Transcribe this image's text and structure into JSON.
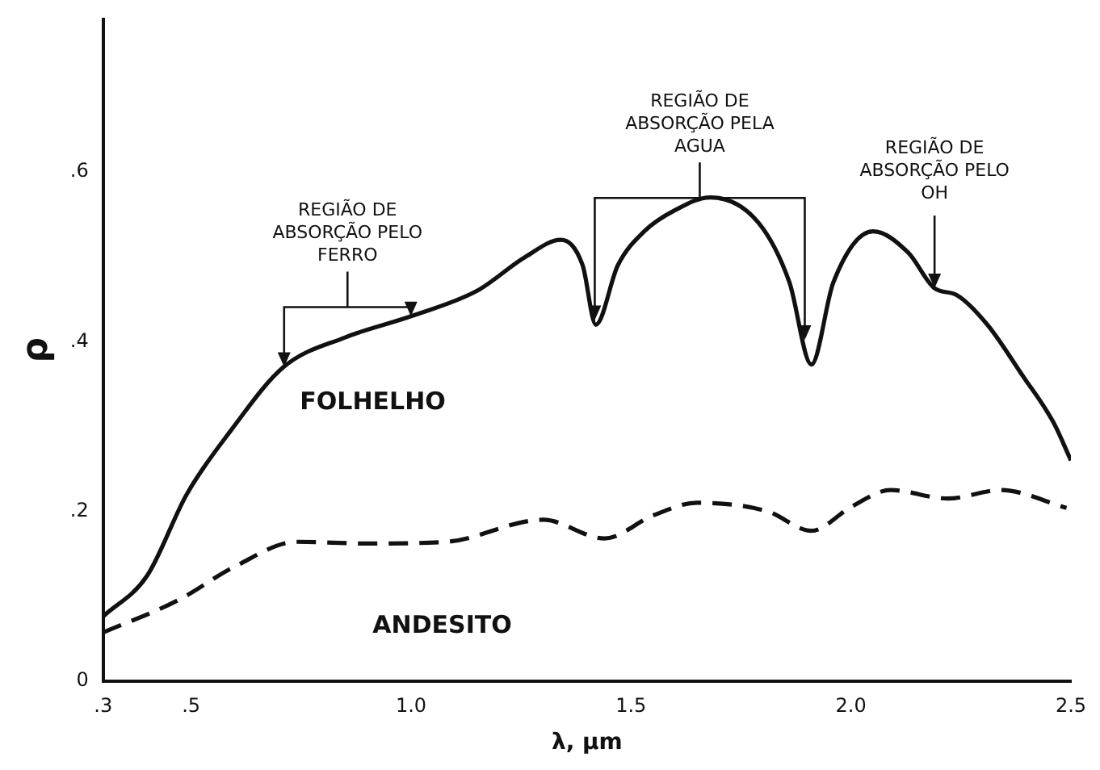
{
  "chart_data": {
    "type": "line",
    "xlabel": "λ, μm",
    "ylabel": "ρ",
    "xlim": [
      0.3,
      2.5
    ],
    "ylim": [
      0,
      0.78
    ],
    "xticks": [
      {
        "value": 0.3,
        "label": ".3"
      },
      {
        "value": 0.5,
        "label": ".5"
      },
      {
        "value": 1.0,
        "label": "1.0"
      },
      1.5,
      {
        "value": 2.0,
        "label": "2.0"
      },
      2.5
    ],
    "yticks": [
      0,
      {
        "value": 0.2,
        "label": ".2"
      },
      {
        "value": 0.4,
        "label": ".4"
      },
      {
        "value": 0.6,
        "label": ".6"
      }
    ],
    "grid": false,
    "marker": "none",
    "series": [
      {
        "name": "FOLHELHO",
        "color": "#111111",
        "line_style": "solid",
        "x": [
          0.3,
          0.4,
          0.49,
          0.59,
          0.71,
          0.85,
          1.0,
          1.15,
          1.26,
          1.34,
          1.39,
          1.42,
          1.47,
          1.53,
          1.6,
          1.68,
          1.79,
          1.86,
          1.91,
          1.96,
          2.05,
          2.13,
          2.19,
          2.24,
          2.31,
          2.39,
          2.46,
          2.5
        ],
        "values": [
          0.076,
          0.124,
          0.22,
          0.295,
          0.37,
          0.405,
          0.43,
          0.46,
          0.5,
          0.52,
          0.49,
          0.42,
          0.49,
          0.53,
          0.555,
          0.57,
          0.54,
          0.47,
          0.373,
          0.47,
          0.53,
          0.505,
          0.463,
          0.455,
          0.42,
          0.36,
          0.305,
          0.26
        ]
      },
      {
        "name": "ANDESITO",
        "color": "#111111",
        "line_style": "dashed",
        "x": [
          0.3,
          0.47,
          0.6,
          0.74,
          0.9,
          1.08,
          1.3,
          1.44,
          1.55,
          1.65,
          1.81,
          1.91,
          2.0,
          2.09,
          2.22,
          2.34,
          2.49
        ],
        "values": [
          0.057,
          0.095,
          0.135,
          0.164,
          0.162,
          0.164,
          0.19,
          0.168,
          0.195,
          0.21,
          0.2,
          0.177,
          0.205,
          0.225,
          0.215,
          0.225,
          0.204
        ]
      }
    ],
    "annotations": [
      "REGIÃO DE\nABSORÇÃO PELO\nFERRO",
      "REGIÃO DE\nABSORÇÃO PELA\nAGUA",
      {
        "text": "REGIÃO DE\nABSORÇÃO PELO\nOH",
        "x": 2.19,
        "y": 0.463
      }
    ]
  }
}
